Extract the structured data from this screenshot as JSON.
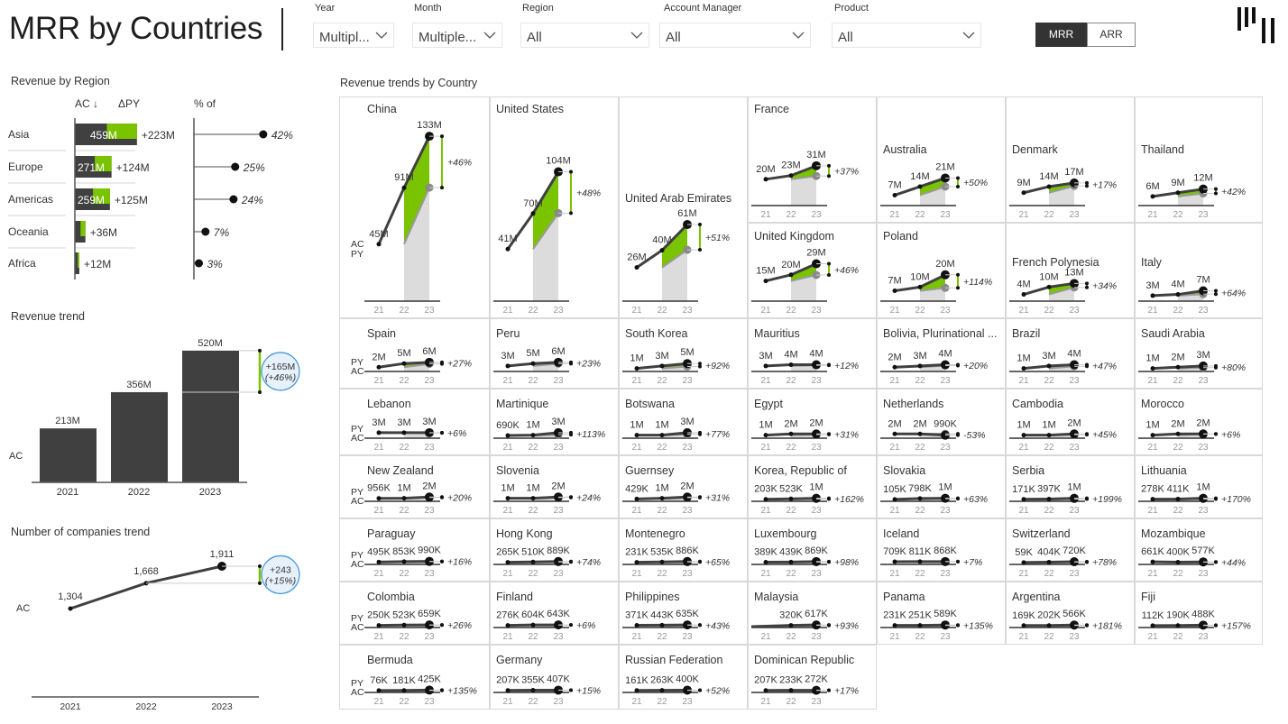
{
  "header": {
    "title": "MRR by Countries",
    "slicers": [
      {
        "label": "Year",
        "value": "Multipl..."
      },
      {
        "label": "Month",
        "value": "Multiple..."
      },
      {
        "label": "Region",
        "value": "All"
      },
      {
        "label": "Account Manager",
        "value": "All"
      },
      {
        "label": "Product",
        "value": "All"
      }
    ],
    "toggle": {
      "options": [
        "MRR",
        "ARR"
      ],
      "active": "MRR"
    },
    "logo_icon": "bar-logo-icon"
  },
  "colors": {
    "ac": "#404040",
    "py": "#9a9a9a",
    "positive": "#79c300",
    "negative": "#e03c31",
    "bubble": "#e6f1fb",
    "bubble_border": "#4a9ad8"
  },
  "revenue_by_region": {
    "title": "Revenue by Region",
    "col_ac": "AC ↓",
    "col_delta": "ΔPY",
    "col_pct": "% of",
    "rows": [
      {
        "region": "Asia",
        "ac": 459,
        "ac_label": "459M",
        "delta": 223,
        "delta_label": "+223M",
        "pct": 42,
        "pct_label": "42%"
      },
      {
        "region": "Europe",
        "ac": 271,
        "ac_label": "271M",
        "delta": 124,
        "delta_label": "+124M",
        "pct": 25,
        "pct_label": "25%"
      },
      {
        "region": "Americas",
        "ac": 259,
        "ac_label": "259M",
        "delta": 125,
        "delta_label": "+125M",
        "pct": 24,
        "pct_label": "24%"
      },
      {
        "region": "Oceania",
        "ac": 78,
        "ac_label": "",
        "delta": 36,
        "delta_label": "+36M",
        "pct": 7,
        "pct_label": "7%"
      },
      {
        "region": "Africa",
        "ac": 33,
        "ac_label": "",
        "delta": 12,
        "delta_label": "+12M",
        "pct": 3,
        "pct_label": "3%"
      }
    ]
  },
  "revenue_trend": {
    "title": "Revenue trend",
    "series_label": "AC",
    "years": [
      "2021",
      "2022",
      "2023"
    ],
    "values": [
      213,
      356,
      520
    ],
    "labels": [
      "213M",
      "356M",
      "520M"
    ],
    "delta": "+165M",
    "delta_pct": "(+46%)"
  },
  "companies_trend": {
    "title": "Number of companies trend",
    "series_label": "AC",
    "years": [
      "2021",
      "2022",
      "2023"
    ],
    "values": [
      1304,
      1668,
      1911
    ],
    "labels": [
      "1,304",
      "1,668",
      "1,911"
    ],
    "delta": "+243",
    "delta_pct": "(+15%)"
  },
  "country_trends": {
    "title": "Revenue trends by Country",
    "legend": {
      "ac": "AC",
      "py": "PY"
    },
    "years": [
      "21",
      "22",
      "23"
    ],
    "countries": [
      {
        "name": "China",
        "values": [
          "45M",
          "91M",
          "133M"
        ],
        "delta": "+46%"
      },
      {
        "name": "United States",
        "values": [
          "41M",
          "70M",
          "104M"
        ],
        "delta": "+48%"
      },
      {
        "name": "United Arab Emirates",
        "values": [
          "26M",
          "40M",
          "61M"
        ],
        "delta": "+51%"
      },
      {
        "name": "France",
        "values": [
          "20M",
          "23M",
          "31M"
        ],
        "delta": "+37%"
      },
      {
        "name": "Australia",
        "values": [
          "7M",
          "14M",
          "21M"
        ],
        "delta": "+50%"
      },
      {
        "name": "Denmark",
        "values": [
          "9M",
          "14M",
          "17M"
        ],
        "delta": "+17%"
      },
      {
        "name": "Thailand",
        "values": [
          "6M",
          "9M",
          "12M"
        ],
        "delta": "+42%"
      },
      {
        "name": "United Kingdom",
        "values": [
          "15M",
          "20M",
          "29M"
        ],
        "delta": "+46%"
      },
      {
        "name": "Poland",
        "values": [
          "7M",
          "10M",
          "20M"
        ],
        "delta": "+114%"
      },
      {
        "name": "French Polynesia",
        "values": [
          "4M",
          "10M",
          "13M"
        ],
        "delta": "+34%"
      },
      {
        "name": "Italy",
        "values": [
          "3M",
          "4M",
          "7M"
        ],
        "delta": "+64%"
      },
      {
        "name": "Spain",
        "values": [
          "2M",
          "5M",
          "6M"
        ],
        "delta": "+27%"
      },
      {
        "name": "Peru",
        "values": [
          "3M",
          "5M",
          "6M"
        ],
        "delta": "+23%"
      },
      {
        "name": "South Korea",
        "values": [
          "1M",
          "3M",
          "5M"
        ],
        "delta": "+92%"
      },
      {
        "name": "Mauritius",
        "values": [
          "3M",
          "4M",
          "4M"
        ],
        "delta": "+12%"
      },
      {
        "name": "Bolivia, Plurinational ...",
        "values": [
          "2M",
          "3M",
          "4M"
        ],
        "delta": "+20%"
      },
      {
        "name": "Brazil",
        "values": [
          "1M",
          "3M",
          "4M"
        ],
        "delta": "+47%"
      },
      {
        "name": "Saudi Arabia",
        "values": [
          "1M",
          "2M",
          "3M"
        ],
        "delta": "+80%"
      },
      {
        "name": "Lebanon",
        "values": [
          "3M",
          "3M",
          "3M"
        ],
        "delta": "+6%"
      },
      {
        "name": "Martinique",
        "values": [
          "690K",
          "1M",
          "3M"
        ],
        "delta": "+113%"
      },
      {
        "name": "Botswana",
        "values": [
          "1M",
          "1M",
          "3M"
        ],
        "delta": "+77%"
      },
      {
        "name": "Egypt",
        "values": [
          "1M",
          "2M",
          "2M"
        ],
        "delta": "+31%"
      },
      {
        "name": "Netherlands",
        "values": [
          "2M",
          "2M",
          "990K"
        ],
        "delta": "-53%"
      },
      {
        "name": "Cambodia",
        "values": [
          "1M",
          "1M",
          "2M"
        ],
        "delta": "+45%"
      },
      {
        "name": "Morocco",
        "values": [
          "1M",
          "2M",
          "2M"
        ],
        "delta": "+6%"
      },
      {
        "name": "New Zealand",
        "values": [
          "956K",
          "1M",
          "2M"
        ],
        "delta": "+20%"
      },
      {
        "name": "Slovenia",
        "values": [
          "1M",
          "1M",
          "2M"
        ],
        "delta": "+24%"
      },
      {
        "name": "Guernsey",
        "values": [
          "429K",
          "1M",
          "2M"
        ],
        "delta": "+31%"
      },
      {
        "name": "Korea, Republic of",
        "values": [
          "203K",
          "523K",
          "1M"
        ],
        "delta": "+162%"
      },
      {
        "name": "Slovakia",
        "values": [
          "105K",
          "798K",
          "1M"
        ],
        "delta": "+63%"
      },
      {
        "name": "Serbia",
        "values": [
          "171K",
          "397K",
          "1M"
        ],
        "delta": "+199%"
      },
      {
        "name": "Lithuania",
        "values": [
          "278K",
          "411K",
          "1M"
        ],
        "delta": "+170%"
      },
      {
        "name": "Paraguay",
        "values": [
          "495K",
          "853K",
          "990K"
        ],
        "delta": "+16%"
      },
      {
        "name": "Hong Kong",
        "values": [
          "265K",
          "510K",
          "889K"
        ],
        "delta": "+74%"
      },
      {
        "name": "Montenegro",
        "values": [
          "231K",
          "535K",
          "886K"
        ],
        "delta": "+65%"
      },
      {
        "name": "Luxembourg",
        "values": [
          "389K",
          "439K",
          "869K"
        ],
        "delta": "+98%"
      },
      {
        "name": "Iceland",
        "values": [
          "709K",
          "811K",
          "868K"
        ],
        "delta": "+7%"
      },
      {
        "name": "Switzerland",
        "values": [
          "59K",
          "404K",
          "720K"
        ],
        "delta": "+78%"
      },
      {
        "name": "Mozambique",
        "values": [
          "661K",
          "400K",
          "577K"
        ],
        "delta": "+44%"
      },
      {
        "name": "Colombia",
        "values": [
          "250K",
          "523K",
          "659K"
        ],
        "delta": "+26%"
      },
      {
        "name": "Finland",
        "values": [
          "276K",
          "604K",
          "643K"
        ],
        "delta": "+6%"
      },
      {
        "name": "Philippines",
        "values": [
          "371K",
          "443K",
          "635K"
        ],
        "delta": "+43%"
      },
      {
        "name": "Malaysia",
        "values": [
          "",
          "320K",
          "617K"
        ],
        "delta": "+93%"
      },
      {
        "name": "Panama",
        "values": [
          "231K",
          "251K",
          "589K"
        ],
        "delta": "+135%"
      },
      {
        "name": "Argentina",
        "values": [
          "169K",
          "202K",
          "566K"
        ],
        "delta": "+181%"
      },
      {
        "name": "Fiji",
        "values": [
          "112K",
          "190K",
          "488K"
        ],
        "delta": "+157%"
      },
      {
        "name": "Bermuda",
        "values": [
          "76K",
          "181K",
          "425K"
        ],
        "delta": "+135%"
      },
      {
        "name": "Germany",
        "values": [
          "207K",
          "355K",
          "407K"
        ],
        "delta": "+15%"
      },
      {
        "name": "Russian Federation",
        "values": [
          "161K",
          "263K",
          "400K"
        ],
        "delta": "+52%"
      },
      {
        "name": "Dominican Republic",
        "values": [
          "207K",
          "233K",
          "272K"
        ],
        "delta": "+17%"
      }
    ]
  }
}
